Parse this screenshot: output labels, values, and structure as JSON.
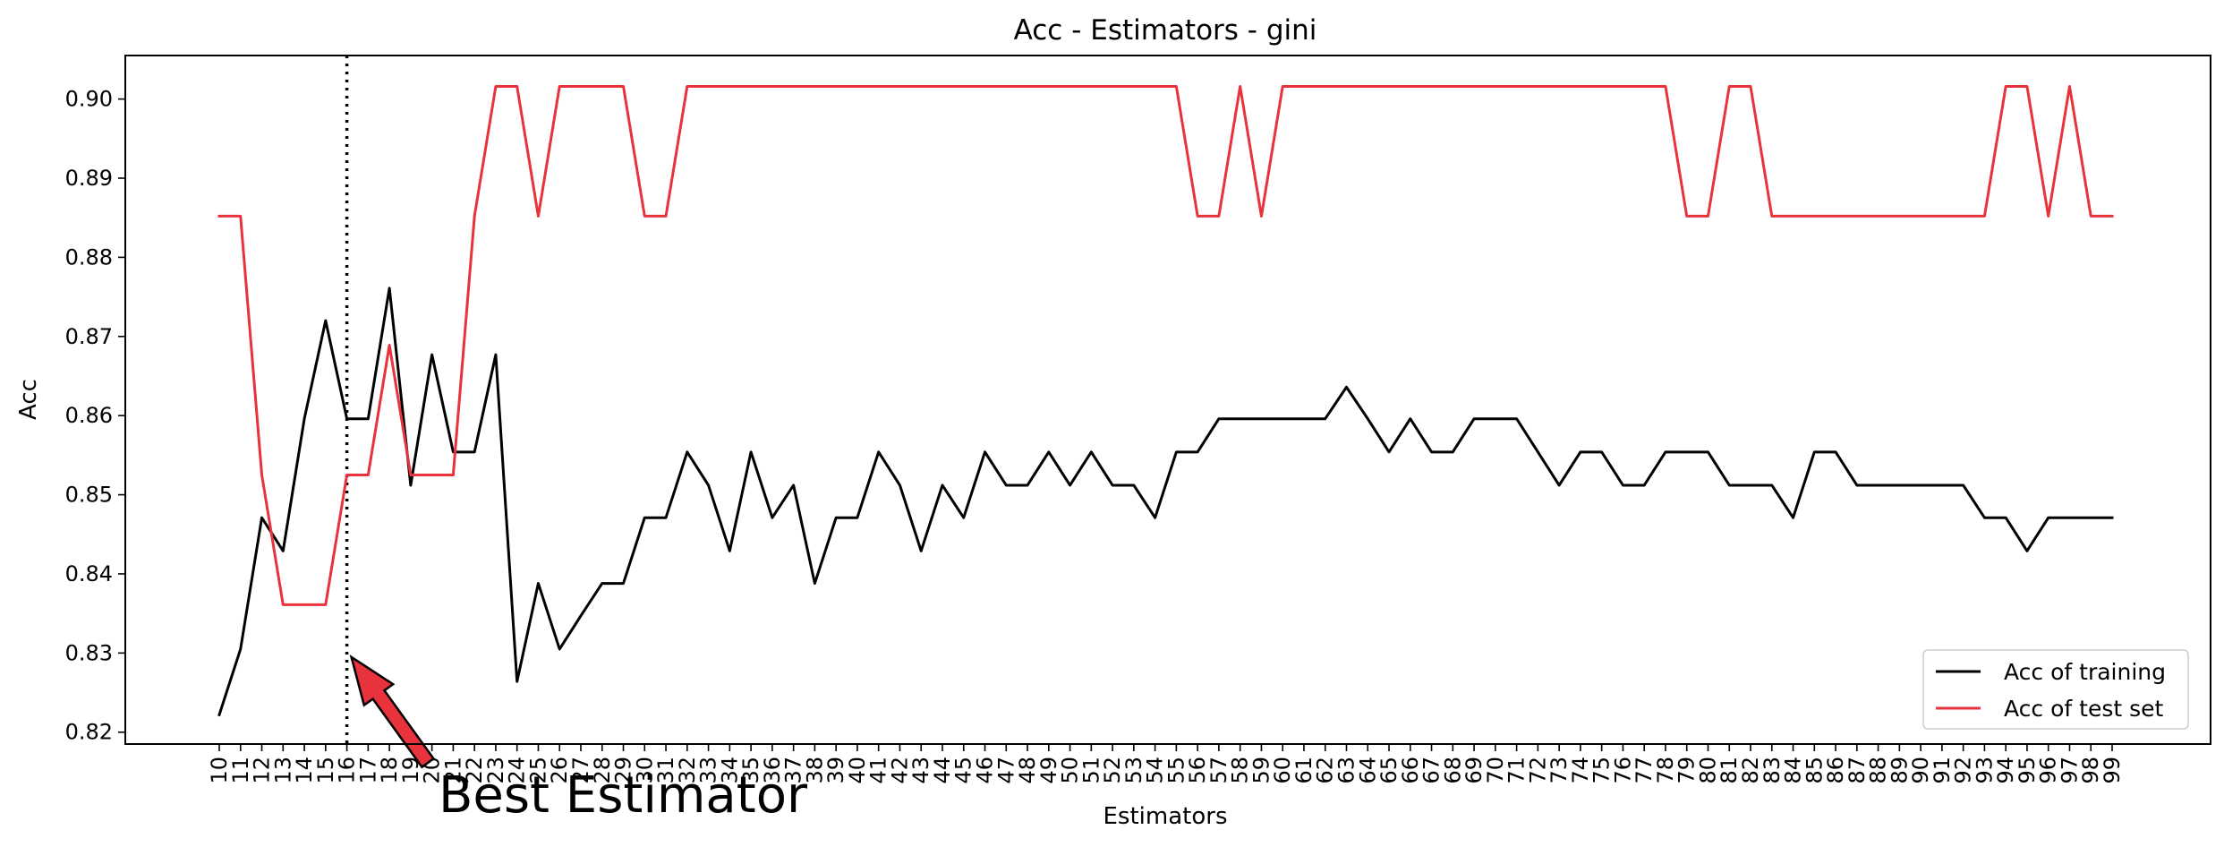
{
  "chart_data": {
    "type": "line",
    "title": "Acc - Estimators - gini",
    "xlabel": "Estimators",
    "ylabel": "Acc",
    "ylim": [
      0.8185,
      0.9055
    ],
    "yticks": [
      "0.82",
      "0.83",
      "0.84",
      "0.85",
      "0.86",
      "0.87",
      "0.88",
      "0.89",
      "0.90"
    ],
    "grid": false,
    "legend_position": "bottom-right",
    "x": [
      10,
      11,
      12,
      13,
      14,
      15,
      16,
      17,
      18,
      19,
      20,
      21,
      22,
      23,
      24,
      25,
      26,
      27,
      28,
      29,
      30,
      31,
      32,
      33,
      34,
      35,
      36,
      37,
      38,
      39,
      40,
      41,
      42,
      43,
      44,
      45,
      46,
      47,
      48,
      49,
      50,
      51,
      52,
      53,
      54,
      55,
      56,
      57,
      58,
      59,
      60,
      61,
      62,
      63,
      64,
      65,
      66,
      67,
      68,
      69,
      70,
      71,
      72,
      73,
      74,
      75,
      76,
      77,
      78,
      79,
      80,
      81,
      82,
      83,
      84,
      85,
      86,
      87,
      88,
      89,
      90,
      91,
      92,
      93,
      94,
      95,
      96,
      97,
      98,
      99
    ],
    "series": [
      {
        "name": "Acc of training",
        "color": "#000000",
        "values": [
          0.8222,
          0.8305,
          0.8471,
          0.8429,
          0.8596,
          0.872,
          0.8596,
          0.8596,
          0.8761,
          0.8512,
          0.8677,
          0.8554,
          0.8554,
          0.8677,
          0.8264,
          0.8388,
          0.8305,
          0.8347,
          0.8388,
          0.8388,
          0.8471,
          0.8471,
          0.8554,
          0.8512,
          0.8429,
          0.8554,
          0.8471,
          0.8512,
          0.8388,
          0.8471,
          0.8471,
          0.8554,
          0.8512,
          0.8429,
          0.8512,
          0.8471,
          0.8554,
          0.8512,
          0.8512,
          0.8554,
          0.8512,
          0.8554,
          0.8512,
          0.8512,
          0.8471,
          0.8554,
          0.8554,
          0.8596,
          0.8596,
          0.8596,
          0.8596,
          0.8596,
          0.8596,
          0.8636,
          0.8596,
          0.8554,
          0.8596,
          0.8554,
          0.8554,
          0.8596,
          0.8596,
          0.8596,
          0.8554,
          0.8512,
          0.8554,
          0.8554,
          0.8512,
          0.8512,
          0.8554,
          0.8554,
          0.8554,
          0.8512,
          0.8512,
          0.8512,
          0.8471,
          0.8554,
          0.8554,
          0.8512,
          0.8512,
          0.8512,
          0.8512,
          0.8512,
          0.8512,
          0.8471,
          0.8471,
          0.8429,
          0.8471,
          0.8471,
          0.8471,
          0.8471
        ]
      },
      {
        "name": "Acc of test set",
        "color": "#e8323c",
        "values": [
          0.8852,
          0.8852,
          0.8525,
          0.8361,
          0.8361,
          0.8361,
          0.8525,
          0.8525,
          0.8689,
          0.8525,
          0.8525,
          0.8525,
          0.8852,
          0.9016,
          0.9016,
          0.8852,
          0.9016,
          0.9016,
          0.9016,
          0.9016,
          0.8852,
          0.8852,
          0.9016,
          0.9016,
          0.9016,
          0.9016,
          0.9016,
          0.9016,
          0.9016,
          0.9016,
          0.9016,
          0.9016,
          0.9016,
          0.9016,
          0.9016,
          0.9016,
          0.9016,
          0.9016,
          0.9016,
          0.9016,
          0.9016,
          0.9016,
          0.9016,
          0.9016,
          0.9016,
          0.9016,
          0.8852,
          0.8852,
          0.9016,
          0.8852,
          0.9016,
          0.9016,
          0.9016,
          0.9016,
          0.9016,
          0.9016,
          0.9016,
          0.9016,
          0.9016,
          0.9016,
          0.9016,
          0.9016,
          0.9016,
          0.9016,
          0.9016,
          0.9016,
          0.9016,
          0.9016,
          0.9016,
          0.8852,
          0.8852,
          0.9016,
          0.9016,
          0.8852,
          0.8852,
          0.8852,
          0.8852,
          0.8852,
          0.8852,
          0.8852,
          0.8852,
          0.8852,
          0.8852,
          0.8852,
          0.9016,
          0.9016,
          0.8852,
          0.9016,
          0.8852,
          0.8852
        ]
      }
    ],
    "best_estimator": 16,
    "annotation": {
      "text": "Best Estimator",
      "target_x": 16,
      "target_y": 0.8295,
      "arrow_color": "#e8323c"
    }
  }
}
